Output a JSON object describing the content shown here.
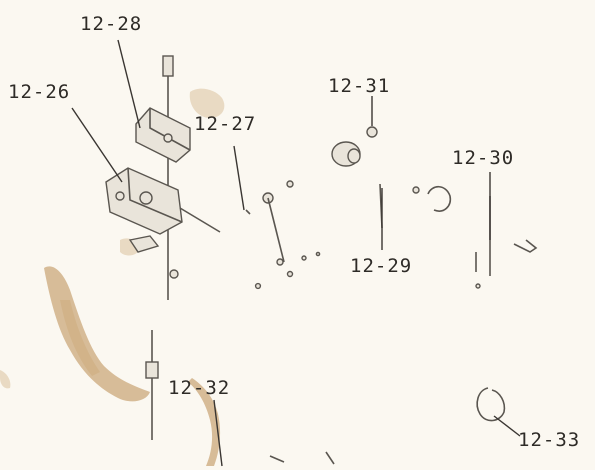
{
  "diagram": {
    "labels": [
      {
        "id": "12-26",
        "text": "12-26"
      },
      {
        "id": "12-27",
        "text": "12-27"
      },
      {
        "id": "12-28",
        "text": "12-28"
      },
      {
        "id": "12-29",
        "text": "12-29"
      },
      {
        "id": "12-30",
        "text": "12-30"
      },
      {
        "id": "12-31",
        "text": "12-31"
      },
      {
        "id": "12-32",
        "text": "12-32"
      },
      {
        "id": "12-33",
        "text": "12-33"
      }
    ]
  },
  "colors": {
    "paper": "#fbf8f1",
    "ink": "#2e2b27",
    "stain": "#b98a4e"
  }
}
